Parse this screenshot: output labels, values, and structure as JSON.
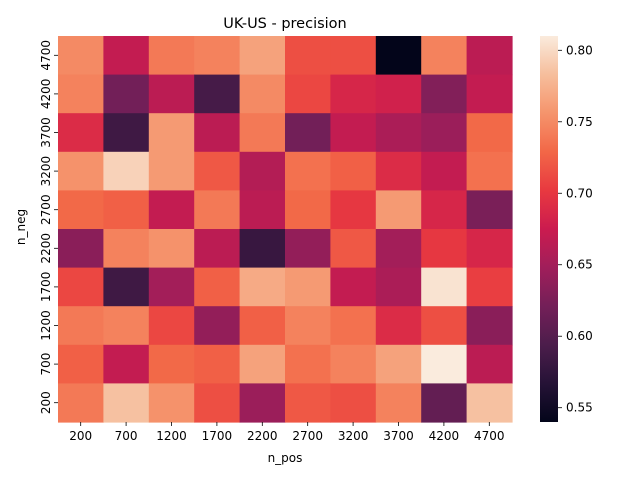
{
  "chart_data": {
    "type": "heatmap",
    "title": "UK-US - precision",
    "xlabel": "n_pos",
    "ylabel": "n_neg",
    "x_categories": [
      "200",
      "700",
      "1200",
      "1700",
      "2200",
      "2700",
      "3200",
      "3700",
      "4200",
      "4700"
    ],
    "y_categories": [
      "4700",
      "4200",
      "3700",
      "3200",
      "2700",
      "2200",
      "1700",
      "1200",
      "700",
      "200"
    ],
    "values": [
      [
        0.75,
        0.67,
        0.74,
        0.745,
        0.765,
        0.715,
        0.715,
        0.54,
        0.745,
        0.665
      ],
      [
        0.745,
        0.62,
        0.665,
        0.59,
        0.75,
        0.71,
        0.685,
        0.68,
        0.63,
        0.67
      ],
      [
        0.69,
        0.585,
        0.76,
        0.665,
        0.74,
        0.62,
        0.67,
        0.655,
        0.645,
        0.73
      ],
      [
        0.755,
        0.795,
        0.76,
        0.72,
        0.66,
        0.735,
        0.725,
        0.69,
        0.67,
        0.735
      ],
      [
        0.73,
        0.725,
        0.67,
        0.74,
        0.665,
        0.73,
        0.7,
        0.76,
        0.685,
        0.625
      ],
      [
        0.635,
        0.745,
        0.755,
        0.665,
        0.58,
        0.64,
        0.72,
        0.65,
        0.7,
        0.685
      ],
      [
        0.71,
        0.585,
        0.65,
        0.725,
        0.77,
        0.76,
        0.67,
        0.655,
        0.805,
        0.705
      ],
      [
        0.74,
        0.745,
        0.71,
        0.64,
        0.725,
        0.745,
        0.735,
        0.69,
        0.715,
        0.635
      ],
      [
        0.725,
        0.67,
        0.73,
        0.725,
        0.765,
        0.735,
        0.745,
        0.765,
        0.81,
        0.665
      ],
      [
        0.74,
        0.785,
        0.755,
        0.715,
        0.645,
        0.72,
        0.715,
        0.745,
        0.61,
        0.785
      ]
    ],
    "vmin": 0.54,
    "vmax": 0.81,
    "colorbar_ticks": [
      "0.55",
      "0.60",
      "0.65",
      "0.70",
      "0.75",
      "0.80"
    ],
    "colormap": "rocket",
    "grid": false
  }
}
